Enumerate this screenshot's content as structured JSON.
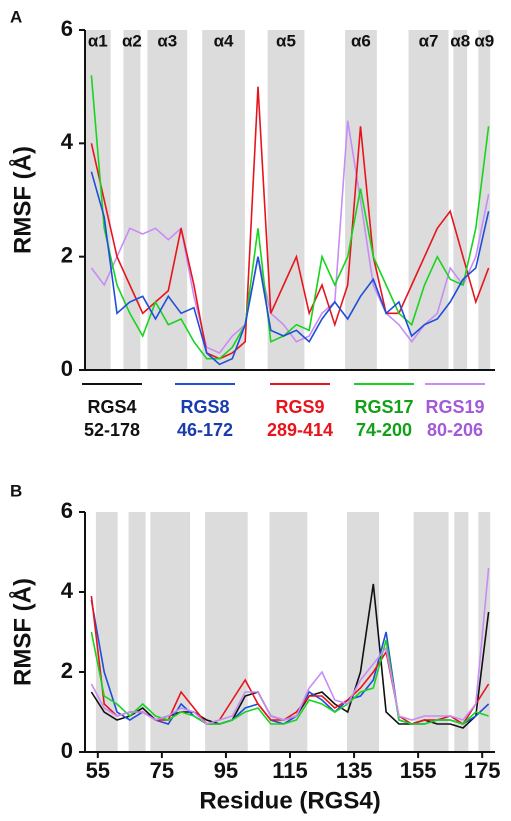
{
  "chart_data": [
    {
      "type": "line",
      "panel": "A",
      "ylabel": "RMSF (Å)",
      "xlim": [
        51,
        179
      ],
      "ylim": [
        0,
        6
      ],
      "yticks": [
        0,
        2,
        4,
        6
      ],
      "regions": [
        [
          51,
          59
        ],
        [
          63,
          68.3
        ],
        [
          70.5,
          82.9
        ],
        [
          87.6,
          100.9
        ],
        [
          108,
          119.5
        ],
        [
          132.2,
          142.1
        ],
        [
          152,
          164.5
        ],
        [
          166,
          170.3
        ],
        [
          173.8,
          177.5
        ]
      ],
      "region_color": "#dcdcdc",
      "region_labels": [
        "α1",
        "α2",
        "α3",
        "α4",
        "α5",
        "α6",
        "α7",
        "α8",
        "α9"
      ],
      "x": [
        53,
        57,
        61,
        65,
        69,
        73,
        77,
        81,
        85,
        89,
        93,
        97,
        101,
        105,
        109,
        113,
        117,
        121,
        125,
        129,
        133,
        137,
        141,
        145,
        149,
        153,
        157,
        161,
        165,
        169,
        173,
        177
      ],
      "series": [
        {
          "color": "#c78cf5",
          "values": [
            1.8,
            1.5,
            2.0,
            2.5,
            2.4,
            2.5,
            2.3,
            2.5,
            1.3,
            0.4,
            0.3,
            0.6,
            0.8,
            2.0,
            1.0,
            0.8,
            0.5,
            0.6,
            1.0,
            1.2,
            4.4,
            3.0,
            1.5,
            1.0,
            0.8,
            0.5,
            0.8,
            1.0,
            1.8,
            1.5,
            2.0,
            3.1
          ]
        },
        {
          "color": "#e8141c",
          "values": [
            4.0,
            3.0,
            2.0,
            1.5,
            1.0,
            1.2,
            1.4,
            2.5,
            1.5,
            0.3,
            0.2,
            0.3,
            0.5,
            5.0,
            1.0,
            1.5,
            2.0,
            1.0,
            1.5,
            0.8,
            1.5,
            4.3,
            2.0,
            1.0,
            1.0,
            1.5,
            2.0,
            2.5,
            2.8,
            2.0,
            1.2,
            1.8
          ]
        },
        {
          "color": "#18d41e",
          "values": [
            5.2,
            2.5,
            1.5,
            1.0,
            0.6,
            1.2,
            0.8,
            0.9,
            0.5,
            0.2,
            0.2,
            0.4,
            0.8,
            2.5,
            0.5,
            0.6,
            0.8,
            0.7,
            2.0,
            1.5,
            2.0,
            3.2,
            2.0,
            1.5,
            1.0,
            0.8,
            1.5,
            2.0,
            1.6,
            1.5,
            2.5,
            4.3
          ]
        },
        {
          "color": "#1f4ed8",
          "values": [
            3.5,
            2.7,
            1.0,
            1.2,
            1.3,
            0.9,
            1.3,
            1.0,
            1.1,
            0.3,
            0.1,
            0.2,
            0.8,
            2.0,
            0.7,
            0.6,
            0.7,
            0.5,
            0.9,
            1.2,
            0.9,
            1.3,
            1.6,
            1.0,
            1.2,
            0.6,
            0.8,
            0.9,
            1.2,
            1.6,
            1.8,
            2.8
          ]
        }
      ]
    },
    {
      "type": "line",
      "panel": "B",
      "ylabel": "RMSF (Å)",
      "xlabel": "Residue (RGS4)",
      "xlim": [
        51,
        179
      ],
      "ylim": [
        0,
        6
      ],
      "yticks": [
        0,
        2,
        4,
        6
      ],
      "xticks": [
        55,
        75,
        95,
        115,
        135,
        155,
        175
      ],
      "regions": [
        [
          54.4,
          61.2
        ],
        [
          64.6,
          69.9
        ],
        [
          71.4,
          83.8
        ],
        [
          88.5,
          101.8
        ],
        [
          108.6,
          120.4
        ],
        [
          132.8,
          142.8
        ],
        [
          153.6,
          164.5
        ],
        [
          166.3,
          170.7
        ],
        [
          173.8,
          177.5
        ]
      ],
      "region_color": "#dcdcdc",
      "x": [
        53,
        57,
        61,
        65,
        69,
        73,
        77,
        81,
        85,
        89,
        93,
        97,
        101,
        105,
        109,
        113,
        117,
        121,
        125,
        129,
        133,
        137,
        141,
        145,
        149,
        153,
        157,
        161,
        165,
        169,
        173,
        177
      ],
      "series": [
        {
          "name": "RGS4",
          "residues": "52-178",
          "color": "#111111",
          "text_color": "#111111",
          "values": [
            1.5,
            1.0,
            0.8,
            0.9,
            1.1,
            0.8,
            0.9,
            1.0,
            1.0,
            0.8,
            0.7,
            0.8,
            1.4,
            1.5,
            0.9,
            0.8,
            0.9,
            1.4,
            1.5,
            1.2,
            1.0,
            2.0,
            4.2,
            1.0,
            0.7,
            0.7,
            0.8,
            0.7,
            0.7,
            0.6,
            0.9,
            3.5
          ]
        },
        {
          "name": "RGS8",
          "residues": "46-172",
          "color": "#1f4ed8",
          "text_color": "#1a3bb0",
          "values": [
            3.8,
            2.0,
            1.0,
            0.8,
            1.0,
            0.8,
            0.7,
            1.2,
            0.9,
            0.7,
            0.7,
            0.8,
            1.1,
            1.2,
            0.8,
            0.7,
            0.9,
            1.5,
            1.3,
            1.0,
            1.3,
            1.4,
            1.8,
            3.0,
            0.8,
            0.7,
            0.7,
            0.8,
            0.8,
            0.7,
            0.9,
            1.2
          ]
        },
        {
          "name": "RGS9",
          "residues": "289-414",
          "color": "#e8141c",
          "text_color": "#e8141c",
          "values": [
            3.9,
            1.2,
            0.9,
            1.0,
            1.0,
            0.8,
            0.8,
            1.5,
            1.1,
            0.7,
            0.8,
            1.3,
            1.8,
            1.2,
            0.8,
            0.8,
            1.0,
            1.4,
            1.4,
            1.1,
            1.3,
            1.6,
            2.0,
            2.5,
            0.9,
            0.7,
            0.8,
            0.8,
            0.9,
            0.7,
            1.2,
            1.7
          ]
        },
        {
          "name": "RGS17",
          "residues": "74-200",
          "color": "#18d41e",
          "text_color": "#12a018",
          "values": [
            3.0,
            1.4,
            1.2,
            0.9,
            1.2,
            0.9,
            0.8,
            1.0,
            0.9,
            0.7,
            0.7,
            0.8,
            1.0,
            1.1,
            0.7,
            0.7,
            0.8,
            1.3,
            1.2,
            1.0,
            1.2,
            1.5,
            1.6,
            2.8,
            0.8,
            0.7,
            0.7,
            0.8,
            0.8,
            0.7,
            1.0,
            0.9
          ]
        },
        {
          "name": "RGS19",
          "residues": "80-206",
          "color": "#c78cf5",
          "text_color": "#a35ad8",
          "values": [
            1.7,
            1.1,
            0.9,
            1.0,
            1.0,
            0.8,
            0.9,
            1.1,
            1.0,
            0.7,
            0.8,
            0.9,
            1.5,
            1.5,
            0.9,
            0.8,
            0.9,
            1.6,
            2.0,
            1.3,
            1.2,
            1.8,
            2.2,
            2.6,
            0.9,
            0.8,
            0.9,
            0.9,
            0.9,
            0.8,
            1.2,
            4.6
          ]
        }
      ]
    }
  ]
}
